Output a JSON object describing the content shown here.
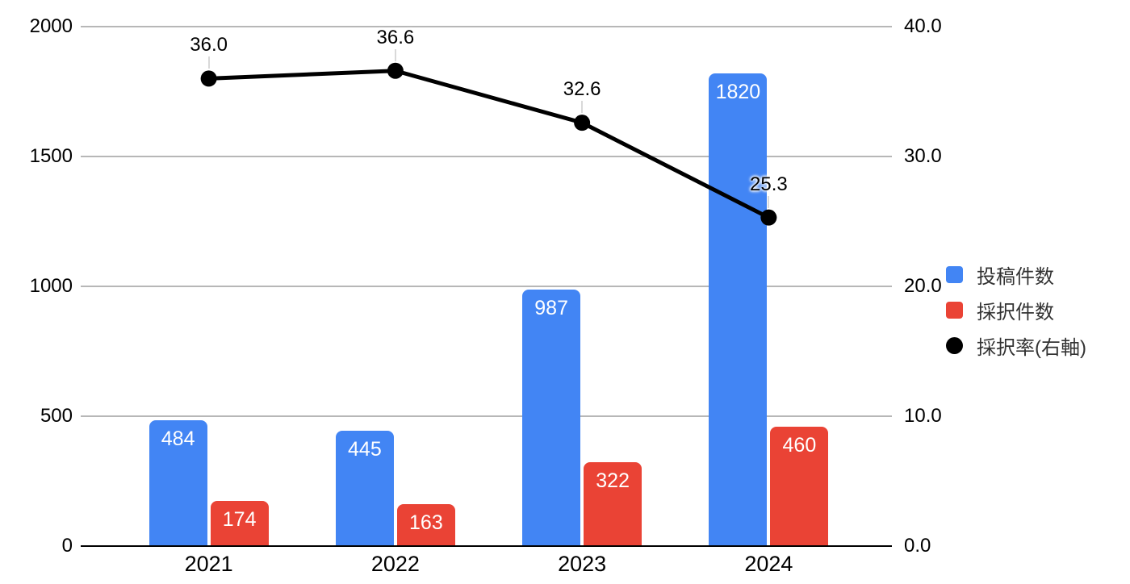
{
  "chart_data": {
    "type": "bar",
    "subtype": "combo-grouped-bar-with-line",
    "title": "",
    "categories": [
      "2021",
      "2022",
      "2023",
      "2024"
    ],
    "series": [
      {
        "name": "投稿件数",
        "type": "bar",
        "axis": "left",
        "color": "#4285F4",
        "values": [
          484,
          445,
          987,
          1820
        ],
        "value_labels": [
          "484",
          "445",
          "987",
          "1820"
        ]
      },
      {
        "name": "採択件数",
        "type": "bar",
        "axis": "left",
        "color": "#EA4335",
        "values": [
          174,
          163,
          322,
          460
        ],
        "value_labels": [
          "174",
          "163",
          "322",
          "460"
        ]
      },
      {
        "name": "採択率(右軸)",
        "type": "line",
        "axis": "right",
        "color": "#000000",
        "values": [
          36.0,
          36.6,
          32.6,
          25.3
        ],
        "value_labels": [
          "36.0",
          "36.6",
          "32.6",
          "25.3"
        ]
      }
    ],
    "left_axis": {
      "min": 0,
      "max": 2000,
      "tick_values": [
        0,
        500,
        1000,
        1500,
        2000
      ],
      "tick_labels": [
        "0",
        "500",
        "1000",
        "1500",
        "2000"
      ]
    },
    "right_axis": {
      "min": 0,
      "max": 40,
      "tick_values": [
        0,
        10,
        20,
        30,
        40
      ],
      "tick_labels": [
        "0.0",
        "10.0",
        "20.0",
        "30.0",
        "40.0"
      ]
    },
    "grid": true,
    "legend_position": "right",
    "colors": {
      "background": "#ffffff",
      "gridline": "#b7b7b7",
      "axis_line": "#000000",
      "tick_text": "#000000",
      "legend_text": "#333333",
      "bar_label_text": "#ffffff",
      "point_label_connector": "#d9d9d9"
    }
  }
}
